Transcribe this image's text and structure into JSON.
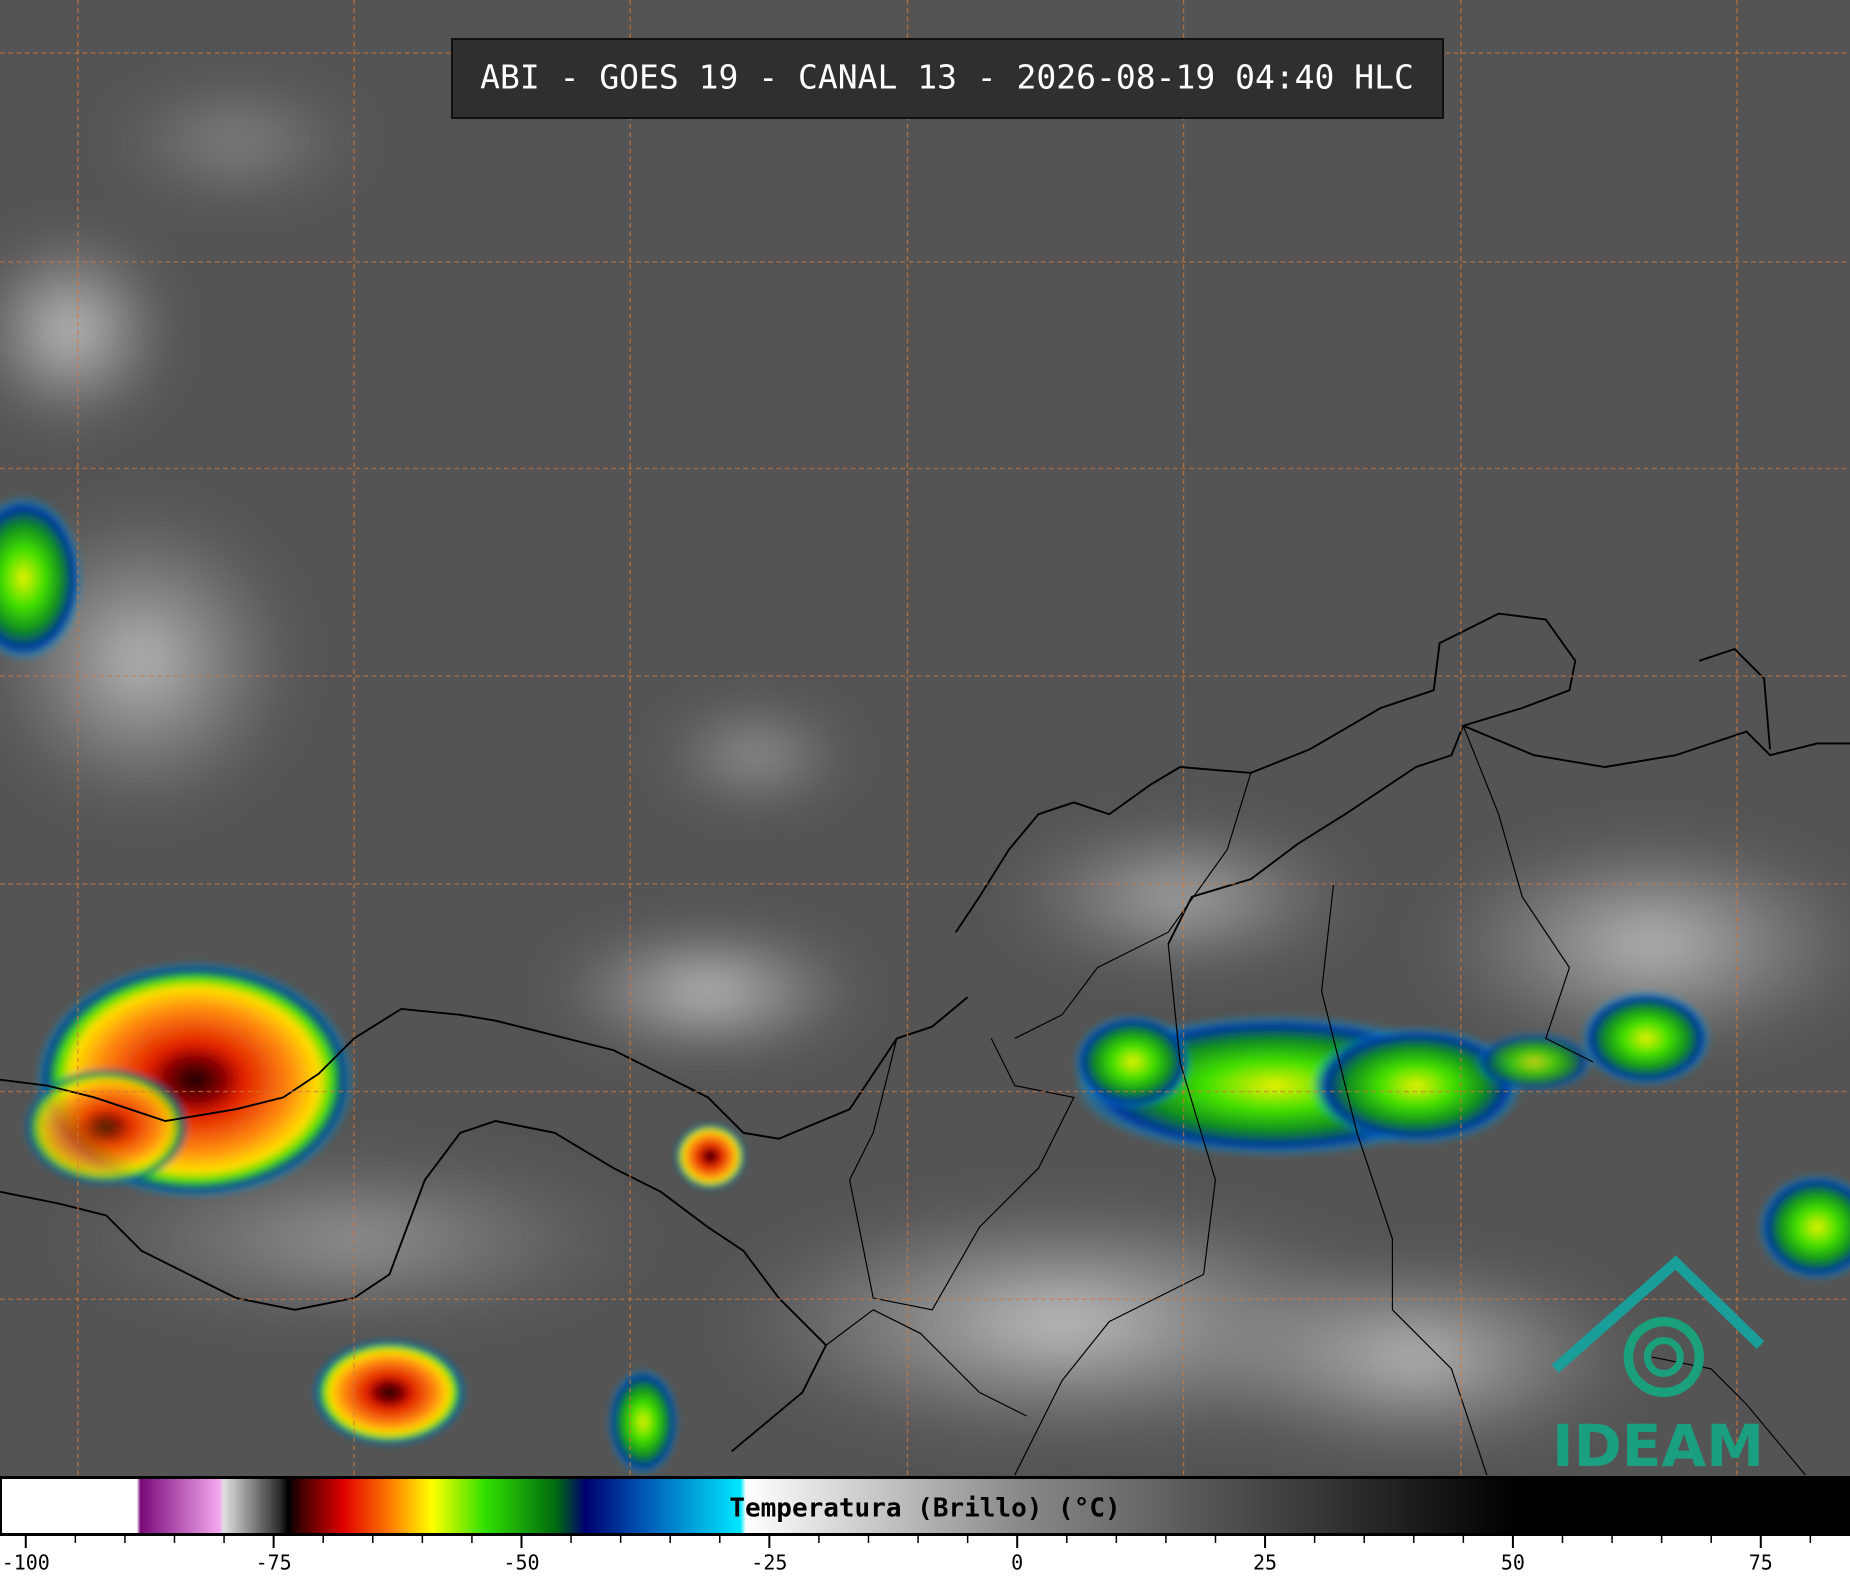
{
  "title": "ABI - GOES 19 - CANAL 13 - 2026-08-19 04:40 HLC",
  "colorbar": {
    "label": "Temperatura (Brillo) (°C)",
    "lim": [
      -102.6,
      84
    ],
    "ticks": [
      -100,
      -75,
      -50,
      -25,
      0,
      25,
      50,
      75
    ]
  },
  "logo": "IDEAM"
}
